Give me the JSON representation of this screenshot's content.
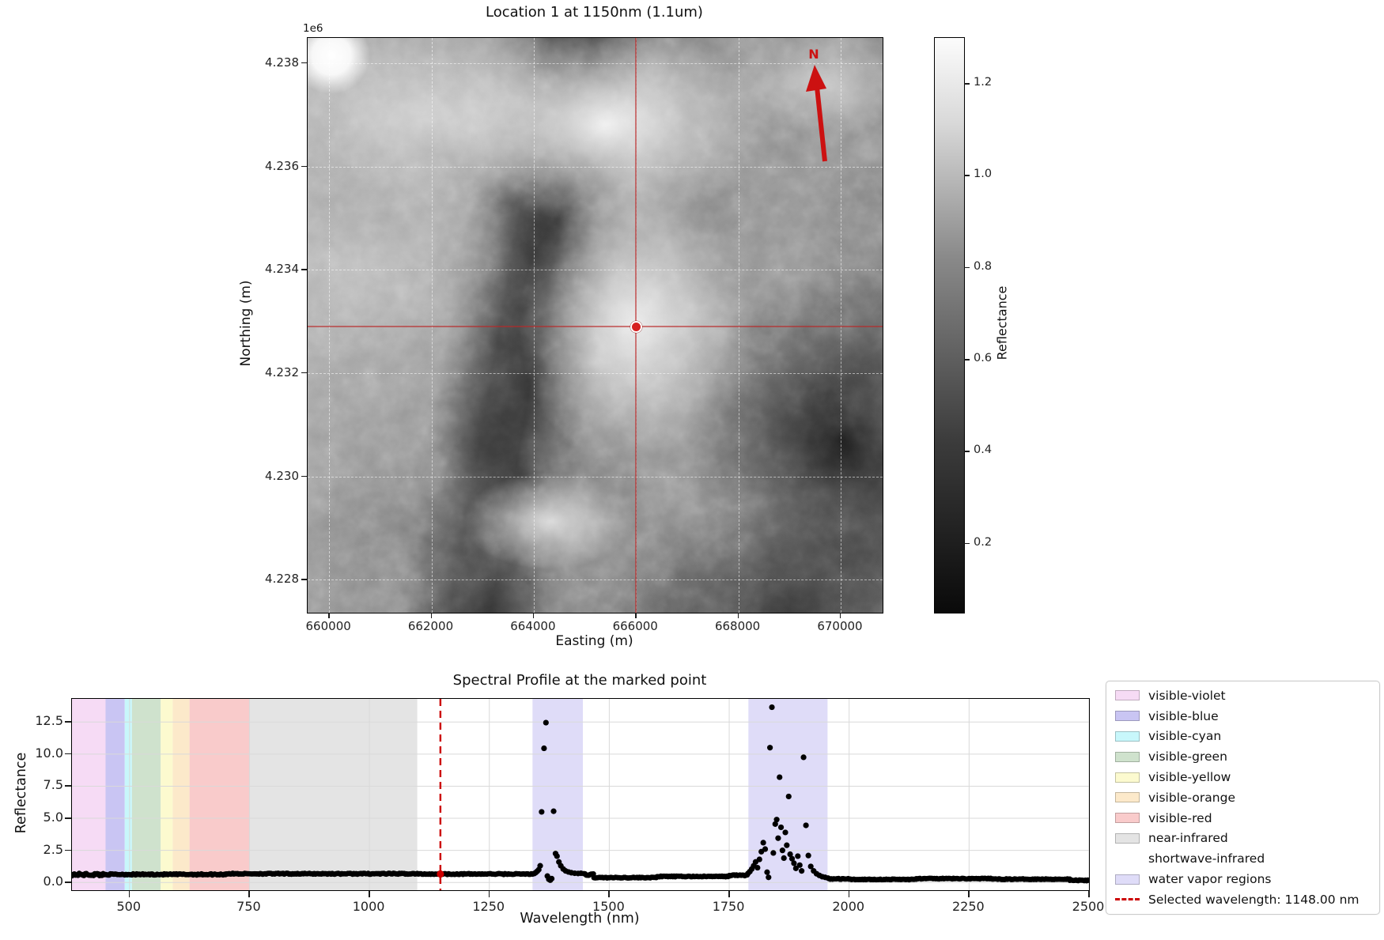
{
  "map": {
    "title": "Location 1 at 1150nm (1.1um)",
    "axis_offset_label": "1e6",
    "xlabel": "Easting (m)",
    "ylabel": "Northing (m)",
    "north_label": "N",
    "accent_red": "#cc1111",
    "xticks": [
      {
        "label": "660000",
        "value": 660000
      },
      {
        "label": "662000",
        "value": 662000
      },
      {
        "label": "664000",
        "value": 664000
      },
      {
        "label": "666000",
        "value": 666000
      },
      {
        "label": "668000",
        "value": 668000
      },
      {
        "label": "670000",
        "value": 670000
      }
    ],
    "yticks": [
      {
        "label": "4.238",
        "value": 4238000
      },
      {
        "label": "4.236",
        "value": 4236000
      },
      {
        "label": "4.234",
        "value": 4234000
      },
      {
        "label": "4.232",
        "value": 4232000
      },
      {
        "label": "4.230",
        "value": 4230000
      },
      {
        "label": "4.228",
        "value": 4228000
      }
    ],
    "extent": {
      "easting": [
        659580,
        670820
      ],
      "northing": [
        4227360,
        4238490
      ]
    },
    "marked_point": {
      "easting": 666000,
      "northing": 4232900
    },
    "colorbar": {
      "label": "Reflectance",
      "vmin": 0.05,
      "vmax": 1.3,
      "ticks": [
        {
          "label": "1.2",
          "value": 1.2
        },
        {
          "label": "1.0",
          "value": 1.0
        },
        {
          "label": "0.8",
          "value": 0.8
        },
        {
          "label": "0.6",
          "value": 0.6
        },
        {
          "label": "0.4",
          "value": 0.4
        },
        {
          "label": "0.2",
          "value": 0.2
        }
      ]
    }
  },
  "spectral": {
    "title": "Spectral Profile at the marked point",
    "xlabel": "Wavelength (nm)",
    "ylabel": "Reflectance",
    "selected_color": "#cc0000",
    "dot_color": "#000000",
    "grid_color": "#d9d9d9",
    "xticks": [
      {
        "label": "500",
        "value": 500
      },
      {
        "label": "750",
        "value": 750
      },
      {
        "label": "1000",
        "value": 1000
      },
      {
        "label": "1250",
        "value": 1250
      },
      {
        "label": "1500",
        "value": 1500
      },
      {
        "label": "1750",
        "value": 1750
      },
      {
        "label": "2000",
        "value": 2000
      },
      {
        "label": "2250",
        "value": 2250
      },
      {
        "label": "2500",
        "value": 2500
      }
    ],
    "yticks": [
      {
        "label": "0.0",
        "value": 0.0
      },
      {
        "label": "2.5",
        "value": 2.5
      },
      {
        "label": "5.0",
        "value": 5.0
      },
      {
        "label": "7.5",
        "value": 7.5
      },
      {
        "label": "10.0",
        "value": 10.0
      },
      {
        "label": "12.5",
        "value": 12.5
      }
    ],
    "legend": [
      {
        "label": "visible-violet",
        "swatch": "#f6dbf5"
      },
      {
        "label": "visible-blue",
        "swatch": "#c9c5f3"
      },
      {
        "label": "visible-cyan",
        "swatch": "#c8f7fb"
      },
      {
        "label": "visible-green",
        "swatch": "#cfe2cd"
      },
      {
        "label": "visible-yellow",
        "swatch": "#fcfacf"
      },
      {
        "label": "visible-orange",
        "swatch": "#fce9ca"
      },
      {
        "label": "visible-red",
        "swatch": "#f9cbcb"
      },
      {
        "label": "near-infrared",
        "swatch": "#e4e4e4"
      },
      {
        "label": "shortwave-infrared",
        "swatch": "blank"
      },
      {
        "label": "water vapor regions",
        "swatch": "#dfdcf8"
      },
      {
        "label": "Selected wavelength: 1148.00 nm",
        "swatch": "dashed-red"
      }
    ]
  },
  "chart_data": [
    {
      "type": "heatmap",
      "title": "Location 1 at 1150nm (1.1um)",
      "xlabel": "Easting (m)",
      "ylabel": "Northing (m)",
      "x_range_m": [
        659580,
        670820
      ],
      "y_range_m": [
        4227360,
        4238490
      ],
      "value_label": "Reflectance",
      "value_range": [
        0.05,
        1.3
      ],
      "colorbar_ticks": [
        0.2,
        0.4,
        0.6,
        0.8,
        1.0,
        1.2
      ],
      "colormap": "grayscale",
      "marked_point": {
        "easting": 666000,
        "northing": 4232900
      },
      "annotations": [
        "N (north arrow)",
        "red crosshair through marked point"
      ]
    },
    {
      "type": "scatter",
      "title": "Spectral Profile at the marked point",
      "xlabel": "Wavelength (nm)",
      "ylabel": "Reflectance",
      "xlim": [
        380,
        2500
      ],
      "ylim": [
        -0.6,
        14.3
      ],
      "grid": true,
      "legend_position": "outside-right",
      "selected_wavelength_nm": 1148,
      "selected_point": [
        1148,
        0.66
      ],
      "bands": [
        {
          "name": "visible-violet",
          "range": [
            380,
            450
          ],
          "color": "#f6dbf5"
        },
        {
          "name": "visible-blue",
          "range": [
            450,
            490
          ],
          "color": "#c9c5f3"
        },
        {
          "name": "visible-cyan",
          "range": [
            490,
            505
          ],
          "color": "#c8f7fb"
        },
        {
          "name": "visible-green",
          "range": [
            505,
            565
          ],
          "color": "#cfe2cd"
        },
        {
          "name": "visible-yellow",
          "range": [
            565,
            590
          ],
          "color": "#fcfacf"
        },
        {
          "name": "visible-orange",
          "range": [
            590,
            625
          ],
          "color": "#fce9ca"
        },
        {
          "name": "visible-red",
          "range": [
            625,
            750
          ],
          "color": "#f9cbcb"
        },
        {
          "name": "near-infrared",
          "range": [
            750,
            1100
          ],
          "color": "#e4e4e4"
        },
        {
          "name": "shortwave-infrared",
          "range": [
            1100,
            2500
          ],
          "color": "#ffffff"
        }
      ],
      "water_vapor_regions": {
        "ranges": [
          [
            1340,
            1445
          ],
          [
            1790,
            1955
          ]
        ],
        "color": "#dfdcf8"
      },
      "baseline_segments": [
        [
          380,
          450,
          0.62,
          0.1
        ],
        [
          450,
          700,
          0.63,
          0.05
        ],
        [
          700,
          1100,
          0.68,
          0.04
        ],
        [
          1100,
          1343,
          0.66,
          0.04
        ],
        [
          1447,
          1468,
          0.6,
          0.1
        ],
        [
          1468,
          1600,
          0.38,
          0.03
        ],
        [
          1600,
          1750,
          0.47,
          0.03
        ],
        [
          1750,
          1788,
          0.56,
          0.04
        ],
        [
          1958,
          2000,
          0.28,
          0.04
        ],
        [
          2000,
          2140,
          0.24,
          0.03
        ],
        [
          2140,
          2300,
          0.3,
          0.03
        ],
        [
          2300,
          2460,
          0.26,
          0.03
        ],
        [
          2460,
          2500,
          0.17,
          0.04
        ]
      ],
      "peak_points_water_vapor_1": [
        [
          1344,
          0.7
        ],
        [
          1347,
          0.78
        ],
        [
          1350,
          0.88
        ],
        [
          1353,
          1.0
        ],
        [
          1356,
          1.3
        ],
        [
          1359,
          5.5
        ],
        [
          1364,
          10.45
        ],
        [
          1368,
          12.45
        ],
        [
          1371,
          0.5
        ],
        [
          1374,
          0.25
        ],
        [
          1377,
          0.18
        ],
        [
          1380,
          0.3
        ],
        [
          1384,
          5.55
        ],
        [
          1388,
          2.25
        ],
        [
          1391,
          2.05
        ],
        [
          1395,
          1.6
        ],
        [
          1399,
          1.3
        ],
        [
          1404,
          1.05
        ],
        [
          1409,
          0.9
        ],
        [
          1415,
          0.82
        ],
        [
          1421,
          0.76
        ],
        [
          1428,
          0.72
        ],
        [
          1435,
          0.7
        ],
        [
          1441,
          0.72
        ]
      ],
      "peak_points_water_vapor_2": [
        [
          1789,
          0.7
        ],
        [
          1793,
          0.85
        ],
        [
          1797,
          1.05
        ],
        [
          1801,
          1.3
        ],
        [
          1805,
          1.6
        ],
        [
          1809,
          1.15
        ],
        [
          1813,
          1.8
        ],
        [
          1817,
          2.4
        ],
        [
          1821,
          3.1
        ],
        [
          1825,
          2.6
        ],
        [
          1829,
          0.8
        ],
        [
          1832,
          0.4
        ],
        [
          1835,
          10.5
        ],
        [
          1839,
          13.65
        ],
        [
          1842,
          2.3
        ],
        [
          1846,
          4.55
        ],
        [
          1849,
          4.9
        ],
        [
          1852,
          3.45
        ],
        [
          1855,
          8.2
        ],
        [
          1858,
          4.3
        ],
        [
          1861,
          2.5
        ],
        [
          1864,
          1.9
        ],
        [
          1867,
          3.9
        ],
        [
          1870,
          2.9
        ],
        [
          1874,
          6.7
        ],
        [
          1877,
          2.2
        ],
        [
          1881,
          1.85
        ],
        [
          1885,
          1.5
        ],
        [
          1889,
          1.1
        ],
        [
          1893,
          2.05
        ],
        [
          1897,
          1.35
        ],
        [
          1901,
          0.9
        ],
        [
          1905,
          9.75
        ],
        [
          1910,
          4.45
        ],
        [
          1915,
          2.1
        ],
        [
          1920,
          1.25
        ],
        [
          1926,
          0.9
        ],
        [
          1932,
          0.68
        ],
        [
          1938,
          0.55
        ],
        [
          1944,
          0.45
        ],
        [
          1950,
          0.4
        ],
        [
          1956,
          0.34
        ]
      ]
    }
  ]
}
